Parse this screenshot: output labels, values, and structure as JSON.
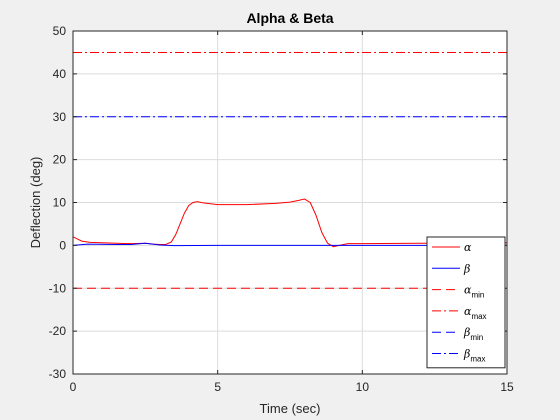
{
  "chart_data": {
    "type": "line",
    "title": "Alpha & Beta",
    "xlabel": "Time (sec)",
    "ylabel": "Deflection (deg)",
    "xlim": [
      0,
      15
    ],
    "ylim": [
      -30,
      50
    ],
    "xticks": [
      0,
      5,
      10,
      15
    ],
    "yticks": [
      -30,
      -20,
      -10,
      0,
      10,
      20,
      30,
      40,
      50
    ],
    "grid": true,
    "legend_position": "bottom-right",
    "series": [
      {
        "name": "α",
        "color": "#ff0000",
        "style": "solid",
        "x": [
          0,
          0.15,
          0.3,
          0.6,
          1.0,
          1.5,
          2.0,
          2.5,
          2.8,
          3.0,
          3.2,
          3.4,
          3.55,
          3.7,
          3.85,
          4.0,
          4.15,
          4.3,
          4.5,
          5.0,
          6.0,
          7.0,
          7.5,
          7.8,
          8.0,
          8.2,
          8.4,
          8.6,
          8.8,
          9.0,
          9.2,
          9.5,
          10.0,
          12.0,
          15.0
        ],
        "y": [
          2.0,
          1.5,
          1.0,
          0.7,
          0.6,
          0.5,
          0.4,
          0.5,
          0.3,
          0.2,
          0.2,
          0.8,
          2.5,
          5.0,
          7.5,
          9.3,
          10.0,
          10.2,
          9.9,
          9.5,
          9.5,
          9.8,
          10.1,
          10.5,
          10.8,
          10.0,
          7.0,
          3.0,
          0.5,
          -0.3,
          0.0,
          0.4,
          0.4,
          0.5,
          0.6
        ]
      },
      {
        "name": "β",
        "color": "#0000ff",
        "style": "solid",
        "x": [
          0,
          0.5,
          1.5,
          2.0,
          2.5,
          3.0,
          3.5,
          5.0,
          10.0,
          15.0
        ],
        "y": [
          0.0,
          0.3,
          0.2,
          0.2,
          0.5,
          0.1,
          -0.05,
          0.0,
          0.0,
          0.0
        ]
      },
      {
        "name": "α",
        "subscript": "min",
        "color": "#ff0000",
        "style": "dashed",
        "x": [
          0,
          15
        ],
        "y": [
          -10,
          -10
        ]
      },
      {
        "name": "α",
        "subscript": "max",
        "color": "#ff0000",
        "style": "dashdot",
        "x": [
          0,
          15
        ],
        "y": [
          45,
          45
        ]
      },
      {
        "name": "β",
        "subscript": "min",
        "color": "#0000ff",
        "style": "dashed",
        "x": [
          0,
          15
        ],
        "y": [
          -30,
          -30
        ]
      },
      {
        "name": "β",
        "subscript": "max",
        "color": "#0000ff",
        "style": "dashdot",
        "x": [
          0,
          15
        ],
        "y": [
          30,
          30
        ]
      }
    ]
  }
}
